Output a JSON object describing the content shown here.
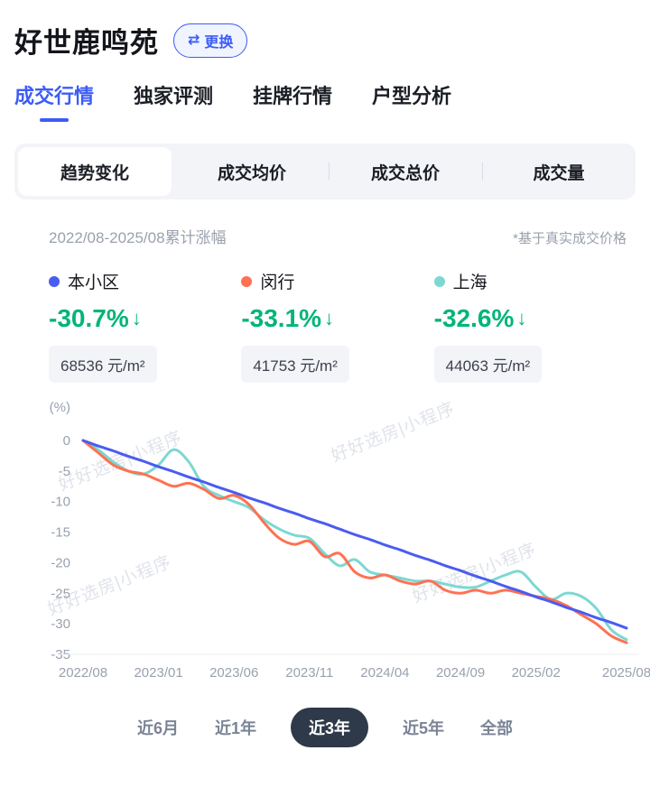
{
  "header": {
    "title": "好世鹿鸣苑",
    "swap_icon": "⇄",
    "switch_label": "更换"
  },
  "main_tabs": {
    "items": [
      {
        "label": "成交行情",
        "active": true
      },
      {
        "label": "独家评测",
        "active": false
      },
      {
        "label": "挂牌行情",
        "active": false
      },
      {
        "label": "户型分析",
        "active": false
      }
    ]
  },
  "sub_tabs": {
    "items": [
      {
        "label": "趋势变化",
        "active": true
      },
      {
        "label": "成交均价",
        "active": false
      },
      {
        "label": "成交总价",
        "active": false
      },
      {
        "label": "成交量",
        "active": false
      }
    ]
  },
  "info": {
    "note": "*基于真实成交价格"
  },
  "stats": {
    "down_arrow": "↓",
    "green": "#00b578"
  },
  "chart_data": {
    "type": "line",
    "title": "2022/08-2025/08累计涨幅",
    "ylabel": "(%)",
    "ylim": [
      -35,
      0
    ],
    "y_ticks": [
      0,
      -5,
      -10,
      -15,
      -20,
      -25,
      -30,
      -35
    ],
    "x_months": 37,
    "x_tick_indices": [
      0,
      5,
      10,
      15,
      20,
      25,
      30,
      36
    ],
    "x_tick_labels": [
      "2022/08",
      "2023/01",
      "2023/06",
      "2023/11",
      "2024/04",
      "2024/09",
      "2025/02",
      "2025/08"
    ],
    "legend_position": "top",
    "grid": false,
    "watermark": "好好选房|小程序",
    "series": [
      {
        "name": "本小区",
        "color": "#4a5cf0",
        "change_pct": "-30.7%",
        "price_label": "68536 元/m²",
        "values": [
          0,
          -0.9,
          -1.7,
          -2.6,
          -3.4,
          -4.3,
          -5.1,
          -6,
          -6.8,
          -7.7,
          -8.5,
          -9.4,
          -10.2,
          -11.1,
          -11.9,
          -12.8,
          -13.6,
          -14.5,
          -15.4,
          -16.2,
          -17.1,
          -17.9,
          -18.8,
          -19.6,
          -20.5,
          -21.3,
          -22.2,
          -23,
          -23.9,
          -24.7,
          -25.6,
          -26.4,
          -27.3,
          -28.1,
          -29,
          -29.8,
          -30.7
        ]
      },
      {
        "name": "闵行",
        "color": "#ff7152",
        "change_pct": "-33.1%",
        "price_label": "41753 元/m²",
        "values": [
          0,
          -2,
          -4,
          -5,
          -5.5,
          -6.5,
          -7.5,
          -7,
          -8,
          -9.5,
          -9,
          -10.5,
          -13.5,
          -16,
          -17,
          -16.5,
          -19,
          -18.5,
          -21.5,
          -22.5,
          -22,
          -23,
          -23.5,
          -23,
          -24.5,
          -25,
          -24.5,
          -25,
          -24.5,
          -25,
          -25.5,
          -26,
          -27,
          -28.5,
          -30,
          -32,
          -33.1
        ]
      },
      {
        "name": "上海",
        "color": "#7cd8d2",
        "change_pct": "-32.6%",
        "price_label": "44063 元/m²",
        "values": [
          0,
          -1.5,
          -3.5,
          -5,
          -5.5,
          -4,
          -1.5,
          -3.5,
          -7.5,
          -9,
          -10,
          -11,
          -13,
          -14.5,
          -15.5,
          -16,
          -18.5,
          -20.5,
          -19.5,
          -21.5,
          -22,
          -22.5,
          -23,
          -23,
          -23.5,
          -24,
          -24,
          -23,
          -22,
          -21.5,
          -24,
          -26,
          -25,
          -25.5,
          -27.5,
          -31,
          -32.6
        ]
      }
    ]
  },
  "range_tabs": {
    "items": [
      {
        "label": "近6月",
        "active": false
      },
      {
        "label": "近1年",
        "active": false
      },
      {
        "label": "近3年",
        "active": true
      },
      {
        "label": "近5年",
        "active": false
      },
      {
        "label": "全部",
        "active": false
      }
    ]
  }
}
